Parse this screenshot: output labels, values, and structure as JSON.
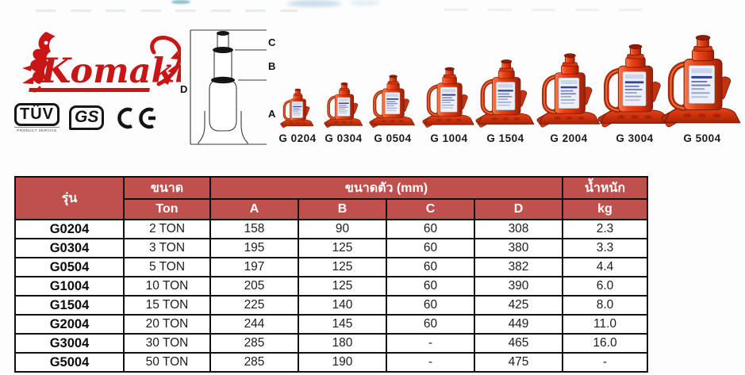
{
  "brand": {
    "logo_text": "Komaki",
    "certs": {
      "tuv": {
        "label": "TÜV",
        "sub": "PRODUCT SERVICE"
      },
      "gs": {
        "label": "GS"
      },
      "ce": {
        "label": "CE"
      }
    }
  },
  "diagram": {
    "labels": {
      "a": "A",
      "b": "B",
      "c": "C",
      "d": "D"
    }
  },
  "products": [
    {
      "label": "G 0204"
    },
    {
      "label": "G 0304"
    },
    {
      "label": "G 0504"
    },
    {
      "label": "G 1004"
    },
    {
      "label": "G 1504"
    },
    {
      "label": "G 2004"
    },
    {
      "label": "G 3004"
    },
    {
      "label": "G 5004"
    }
  ],
  "table": {
    "header": {
      "model": "รุ่น",
      "size": "ขนาด",
      "size_unit": "Ton",
      "body_dims": "ขนาดตัว (mm)",
      "dim_a": "A",
      "dim_b": "B",
      "dim_c": "C",
      "dim_d": "D",
      "weight": "น้ำหนัก",
      "weight_unit": "kg"
    },
    "rows": [
      {
        "model": "G0204",
        "ton": "2 TON",
        "a": "158",
        "b": "90",
        "c": "60",
        "d": "308",
        "kg": "2.3"
      },
      {
        "model": "G0304",
        "ton": "3 TON",
        "a": "195",
        "b": "125",
        "c": "60",
        "d": "380",
        "kg": "3.3"
      },
      {
        "model": "G0504",
        "ton": "5 TON",
        "a": "197",
        "b": "125",
        "c": "60",
        "d": "382",
        "kg": "4.4"
      },
      {
        "model": "G1004",
        "ton": "10 TON",
        "a": "205",
        "b": "125",
        "c": "60",
        "d": "390",
        "kg": "6.0"
      },
      {
        "model": "G1504",
        "ton": "15 TON",
        "a": "225",
        "b": "140",
        "c": "60",
        "d": "425",
        "kg": "8.0"
      },
      {
        "model": "G2004",
        "ton": "20 TON",
        "a": "244",
        "b": "145",
        "c": "60",
        "d": "449",
        "kg": "11.0"
      },
      {
        "model": "G3004",
        "ton": "30 TON",
        "a": "285",
        "b": "180",
        "c": "-",
        "d": "465",
        "kg": "16.0"
      },
      {
        "model": "G5004",
        "ton": "50 TON",
        "a": "285",
        "b": "190",
        "c": "-",
        "d": "475",
        "kg": "-"
      }
    ]
  },
  "colors": {
    "table_header_bg": "#c0504d",
    "table_border": "#101010",
    "jack_red": "#e24016",
    "logo_red": "#c81616"
  }
}
